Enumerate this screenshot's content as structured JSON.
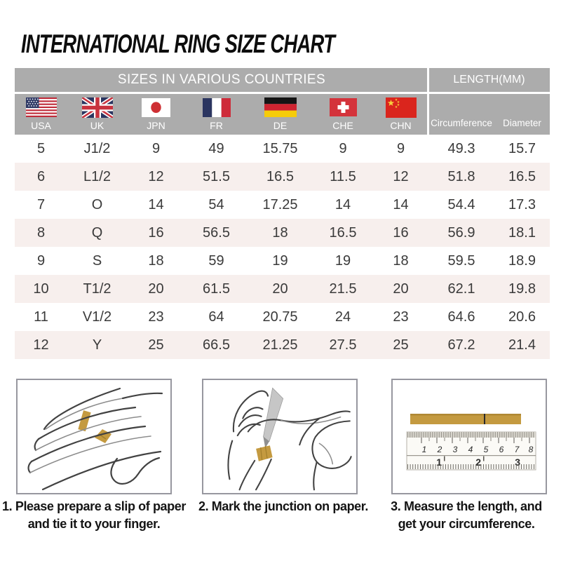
{
  "title": "INTERNATIONAL RING SIZE CHART",
  "colors": {
    "header_gray": "#ACACAC",
    "row_alt_pink": "#F7EFED",
    "paper_strip_gold": "#C49A40",
    "panel_border": "#97979f"
  },
  "table": {
    "group_headers": {
      "left": "SIZES IN VARIOUS COUNTRIES",
      "right": "LENGTH(MM)"
    },
    "countries": [
      {
        "code": "USA",
        "flag": "usa-flag"
      },
      {
        "code": "UK",
        "flag": "uk-flag"
      },
      {
        "code": "JPN",
        "flag": "japan-flag"
      },
      {
        "code": "FR",
        "flag": "france-flag"
      },
      {
        "code": "DE",
        "flag": "germany-flag"
      },
      {
        "code": "CHE",
        "flag": "switzerland-flag"
      },
      {
        "code": "CHN",
        "flag": "china-flag"
      }
    ],
    "length_columns": [
      "Circumference",
      "Diameter"
    ],
    "rows": [
      [
        "5",
        "J1/2",
        "9",
        "49",
        "15.75",
        "9",
        "9",
        "49.3",
        "15.7"
      ],
      [
        "6",
        "L1/2",
        "12",
        "51.5",
        "16.5",
        "11.5",
        "12",
        "51.8",
        "16.5"
      ],
      [
        "7",
        "O",
        "14",
        "54",
        "17.25",
        "14",
        "14",
        "54.4",
        "17.3"
      ],
      [
        "8",
        "Q",
        "16",
        "56.5",
        "18",
        "16.5",
        "16",
        "56.9",
        "18.1"
      ],
      [
        "9",
        "S",
        "18",
        "59",
        "19",
        "19",
        "18",
        "59.5",
        "18.9"
      ],
      [
        "10",
        "T1/2",
        "20",
        "61.5",
        "20",
        "21.5",
        "20",
        "62.1",
        "19.8"
      ],
      [
        "11",
        "V1/2",
        "23",
        "64",
        "20.75",
        "24",
        "23",
        "64.6",
        "20.6"
      ],
      [
        "12",
        "Y",
        "25",
        "66.5",
        "21.25",
        "27.5",
        "25",
        "67.2",
        "21.4"
      ]
    ]
  },
  "instructions": [
    {
      "step": "1",
      "lines": [
        "1. Please prepare a slip of paper",
        "and tie it to your finger."
      ]
    },
    {
      "step": "2",
      "lines": [
        "2. Mark the junction on paper."
      ]
    },
    {
      "step": "3",
      "lines": [
        "3. Measure the length, and",
        "get your circumference."
      ]
    }
  ],
  "ruler": {
    "cm_labels": [
      "1",
      "2",
      "3",
      "4",
      "5",
      "6",
      "7",
      "8"
    ],
    "inch_labels": [
      "1",
      "2",
      "3"
    ]
  }
}
